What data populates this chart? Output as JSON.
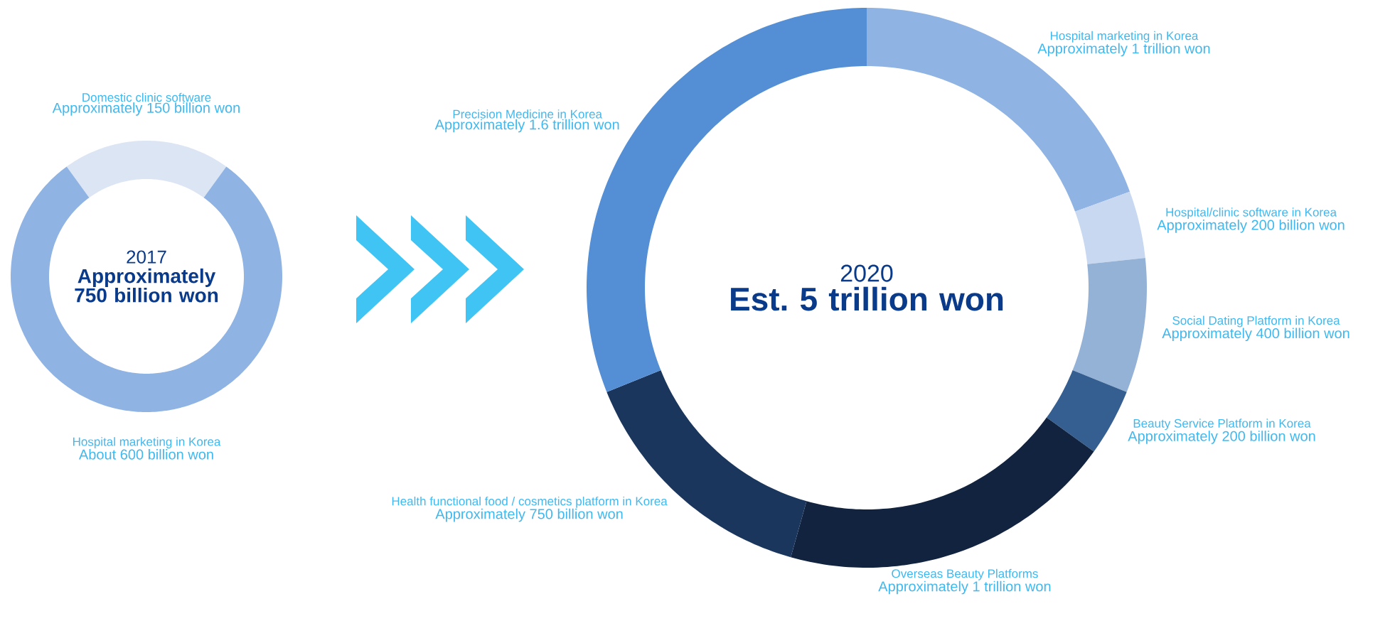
{
  "chart_data": [
    {
      "type": "donut",
      "title": "2017",
      "subtitle": "Approximately 750 billion won",
      "categories": [
        "Domestic clinic software",
        "Hospital marketing in Korea"
      ],
      "values": [
        20,
        80
      ],
      "value_labels": [
        "Approximately 150 billion won",
        "About 600 billion won"
      ],
      "colors": [
        "#dce5f3",
        "#8fb3e3"
      ]
    },
    {
      "type": "donut",
      "title": "2020",
      "subtitle": "Est. 5 trillion won",
      "categories": [
        "Hospital marketing in Korea",
        "Hospital/clinic software in Korea",
        "Social Dating Platform in Korea",
        "Beauty Service Platform in Korea",
        "Overseas Beauty Platforms",
        "Health functional food / cosmetics platform in Korea",
        "Precision Medicine in Korea"
      ],
      "values": [
        19.42,
        3.88,
        7.77,
        3.88,
        19.42,
        14.56,
        31.07
      ],
      "value_labels": [
        "Approximately 1 trillion won",
        "Approximately 200 billion won",
        "Approximately 400 billion won",
        "Approximately 200 billion won",
        "Approximately 1 trillion won",
        "Approximately 750 billion won",
        "Approximately 1.6 trillion won"
      ],
      "colors": [
        "#8fb3e3",
        "#c7d8f0",
        "#94b1d6",
        "#365f91",
        "#11233f",
        "#1a365d",
        "#548fd6"
      ]
    }
  ]
}
